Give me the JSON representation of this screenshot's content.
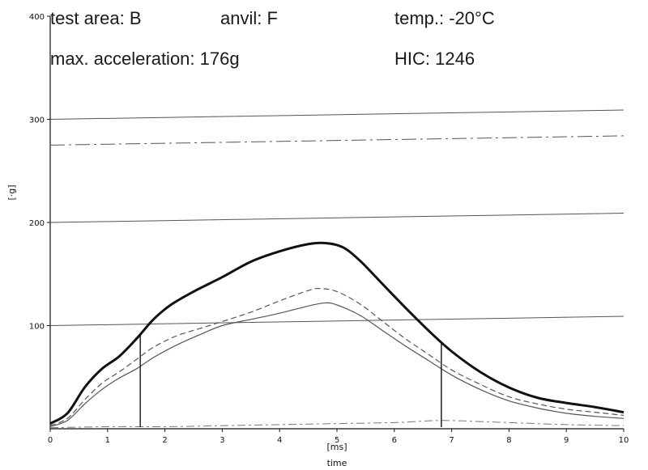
{
  "header": {
    "test_area": "test area: B",
    "anvil": "anvil: F",
    "temp": "temp.: -20°C",
    "max_accel": "max. acceleration: 176g",
    "hic": "HIC: 1246"
  },
  "chart_data": {
    "type": "line",
    "title": "",
    "xlabel": "time",
    "x_unit": "[ms]",
    "ylabel": "[·g]",
    "xlim": [
      0,
      10
    ],
    "ylim": [
      0,
      400
    ],
    "x_ticks": [
      "0",
      "1",
      "2",
      "3",
      "4",
      "5",
      "6",
      "7",
      "8",
      "9",
      "10"
    ],
    "y_ticks": [
      "100",
      "200",
      "300",
      "400"
    ],
    "grid": "horizontal",
    "reference_lines": [
      {
        "style": "solid",
        "y_start": 100,
        "y_end": 109
      },
      {
        "style": "solid",
        "y_start": 200,
        "y_end": 209
      },
      {
        "style": "solid",
        "y_start": 300,
        "y_end": 309
      },
      {
        "style": "dash-dot",
        "y_start": 275,
        "y_end": 284
      }
    ],
    "hic_window": {
      "t1": 1.57,
      "t2": 6.82
    },
    "series": [
      {
        "style": "thick-solid",
        "x": [
          0,
          0.3,
          0.6,
          0.9,
          1.2,
          1.5,
          1.8,
          2.1,
          2.5,
          3.0,
          3.5,
          4.0,
          4.5,
          4.8,
          5.1,
          5.4,
          5.8,
          6.2,
          6.6,
          7.0,
          7.5,
          8.0,
          8.5,
          9.0,
          9.5,
          10
        ],
        "y": [
          5,
          15,
          40,
          58,
          70,
          87,
          106,
          120,
          133,
          147,
          162,
          172,
          179,
          180,
          176,
          163,
          140,
          117,
          95,
          75,
          55,
          40,
          30,
          25,
          21,
          16
        ]
      },
      {
        "style": "dashed",
        "x": [
          0,
          0.3,
          0.6,
          0.9,
          1.2,
          1.5,
          1.8,
          2.2,
          2.6,
          3.0,
          3.5,
          4.0,
          4.5,
          4.7,
          5.0,
          5.4,
          5.8,
          6.2,
          6.6,
          7.0,
          7.5,
          8.0,
          8.5,
          9.0,
          9.5,
          10
        ],
        "y": [
          3,
          10,
          28,
          44,
          55,
          67,
          79,
          90,
          97,
          104,
          113,
          124,
          134,
          136,
          133,
          121,
          104,
          87,
          72,
          57,
          43,
          31,
          24,
          19,
          16,
          13
        ]
      },
      {
        "style": "thin-solid",
        "x": [
          0,
          0.3,
          0.6,
          0.9,
          1.2,
          1.5,
          1.8,
          2.2,
          2.6,
          3.0,
          3.5,
          4.0,
          4.5,
          4.8,
          5.0,
          5.4,
          5.8,
          6.2,
          6.6,
          7.0,
          7.5,
          8.0,
          8.5,
          9.0,
          9.5,
          10
        ],
        "y": [
          2,
          8,
          24,
          38,
          49,
          58,
          69,
          81,
          91,
          100,
          106,
          112,
          119,
          122,
          120,
          110,
          95,
          80,
          66,
          52,
          38,
          27,
          20,
          15,
          12,
          10
        ]
      },
      {
        "style": "baseline",
        "x": [
          0,
          1,
          2,
          3,
          4,
          5,
          6,
          6.8,
          7.5,
          8,
          9,
          10
        ],
        "y": [
          1,
          2,
          2,
          3,
          4,
          5,
          6,
          8,
          7,
          6,
          4,
          3
        ]
      }
    ]
  }
}
